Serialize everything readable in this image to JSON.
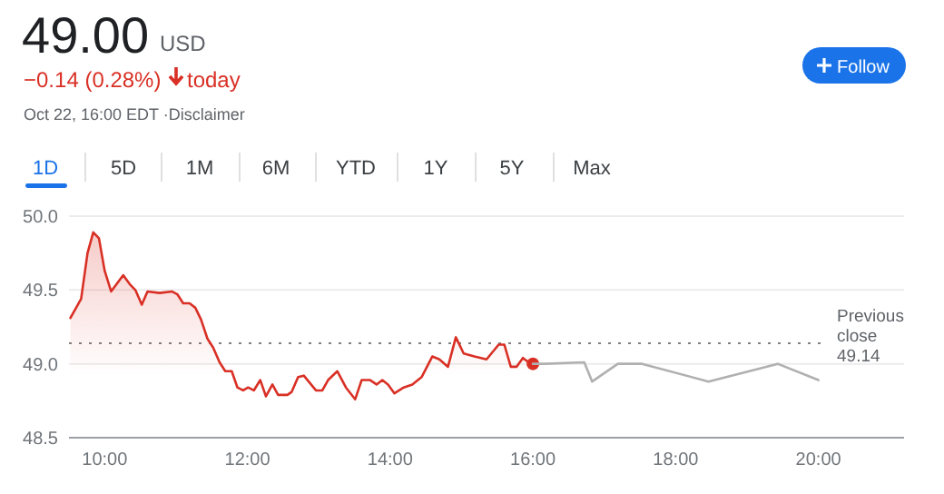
{
  "chart_data": {
    "type": "line",
    "title": "49.00",
    "annotations": [
      "USD",
      "−0.14 (0.28%)",
      "today",
      "Oct 22, 16:00 EDT ·Disclaimer",
      "1D",
      "5D",
      "1M",
      "6M",
      "YTD",
      "1Y",
      "5Y",
      "Max",
      "Follow"
    ],
    "series": [
      {
        "type": "area",
        "color": "#d93025",
        "x": [
          9.52,
          9.67,
          9.76,
          9.84,
          9.92,
          10.0,
          10.09,
          10.26,
          10.35,
          10.43,
          10.52,
          10.6,
          10.77,
          10.94,
          11.02,
          11.1,
          11.19,
          11.27,
          11.35,
          11.44,
          11.52,
          11.61,
          11.69,
          11.78,
          11.86,
          11.94,
          12.01,
          12.09,
          12.18,
          12.26,
          12.35,
          12.43,
          12.56,
          12.62,
          12.71,
          12.79,
          12.96,
          13.05,
          13.13,
          13.26,
          13.38,
          13.51,
          13.6,
          13.72,
          13.81,
          13.89,
          13.97,
          14.06,
          14.19,
          14.31,
          14.44,
          14.59,
          14.69,
          14.81,
          14.92,
          15.03,
          15.18,
          15.35,
          15.52,
          15.6,
          15.69,
          15.77,
          15.86,
          15.94,
          16.0
        ],
        "values": [
          49.31,
          49.44,
          49.75,
          49.89,
          49.85,
          49.63,
          49.49,
          49.6,
          49.54,
          49.5,
          49.4,
          49.49,
          49.48,
          49.49,
          49.47,
          49.41,
          49.41,
          49.38,
          49.3,
          49.17,
          49.11,
          49.01,
          48.95,
          48.95,
          48.84,
          48.82,
          48.84,
          48.82,
          48.89,
          48.78,
          48.86,
          48.79,
          48.79,
          48.81,
          48.91,
          48.92,
          48.82,
          48.82,
          48.89,
          48.95,
          48.84,
          48.76,
          48.89,
          48.89,
          48.86,
          48.89,
          48.86,
          48.8,
          48.84,
          48.86,
          48.91,
          49.05,
          49.03,
          48.98,
          49.18,
          49.07,
          49.05,
          49.03,
          49.13,
          49.13,
          48.98,
          48.98,
          49.04,
          49.01,
          49.0
        ]
      },
      {
        "type": "line",
        "color": "#b0b0b0",
        "x": [
          16.0,
          16.17,
          16.72,
          16.83,
          17.19,
          17.53,
          18.46,
          19.43,
          20.0
        ],
        "values": [
          49.0,
          49.0,
          49.01,
          48.88,
          49.0,
          49.0,
          48.88,
          49.0,
          48.89
        ]
      }
    ],
    "xlim": [
      9.5,
      21.2
    ],
    "xticks": [
      {
        "value": 10,
        "label": "10:00"
      },
      {
        "value": 12,
        "label": "12:00"
      },
      {
        "value": 14,
        "label": "14:00"
      },
      {
        "value": 16,
        "label": "16:00"
      },
      {
        "value": 18,
        "label": "18:00"
      },
      {
        "value": 20,
        "label": "20:00"
      }
    ],
    "ylim": [
      48.5,
      50.0
    ],
    "yticks": [
      {
        "value": 48.5,
        "label": "48.5"
      },
      {
        "value": 49,
        "label": "49.0"
      },
      {
        "value": 49.5,
        "label": "49.5"
      },
      {
        "value": 50,
        "label": "50.0"
      }
    ],
    "grid": "y",
    "ref_lines": [
      {
        "axis": "y",
        "value": 49.14,
        "label": "Previous close 49.14",
        "color": "#808080",
        "line_style": "dotted"
      }
    ]
  }
}
